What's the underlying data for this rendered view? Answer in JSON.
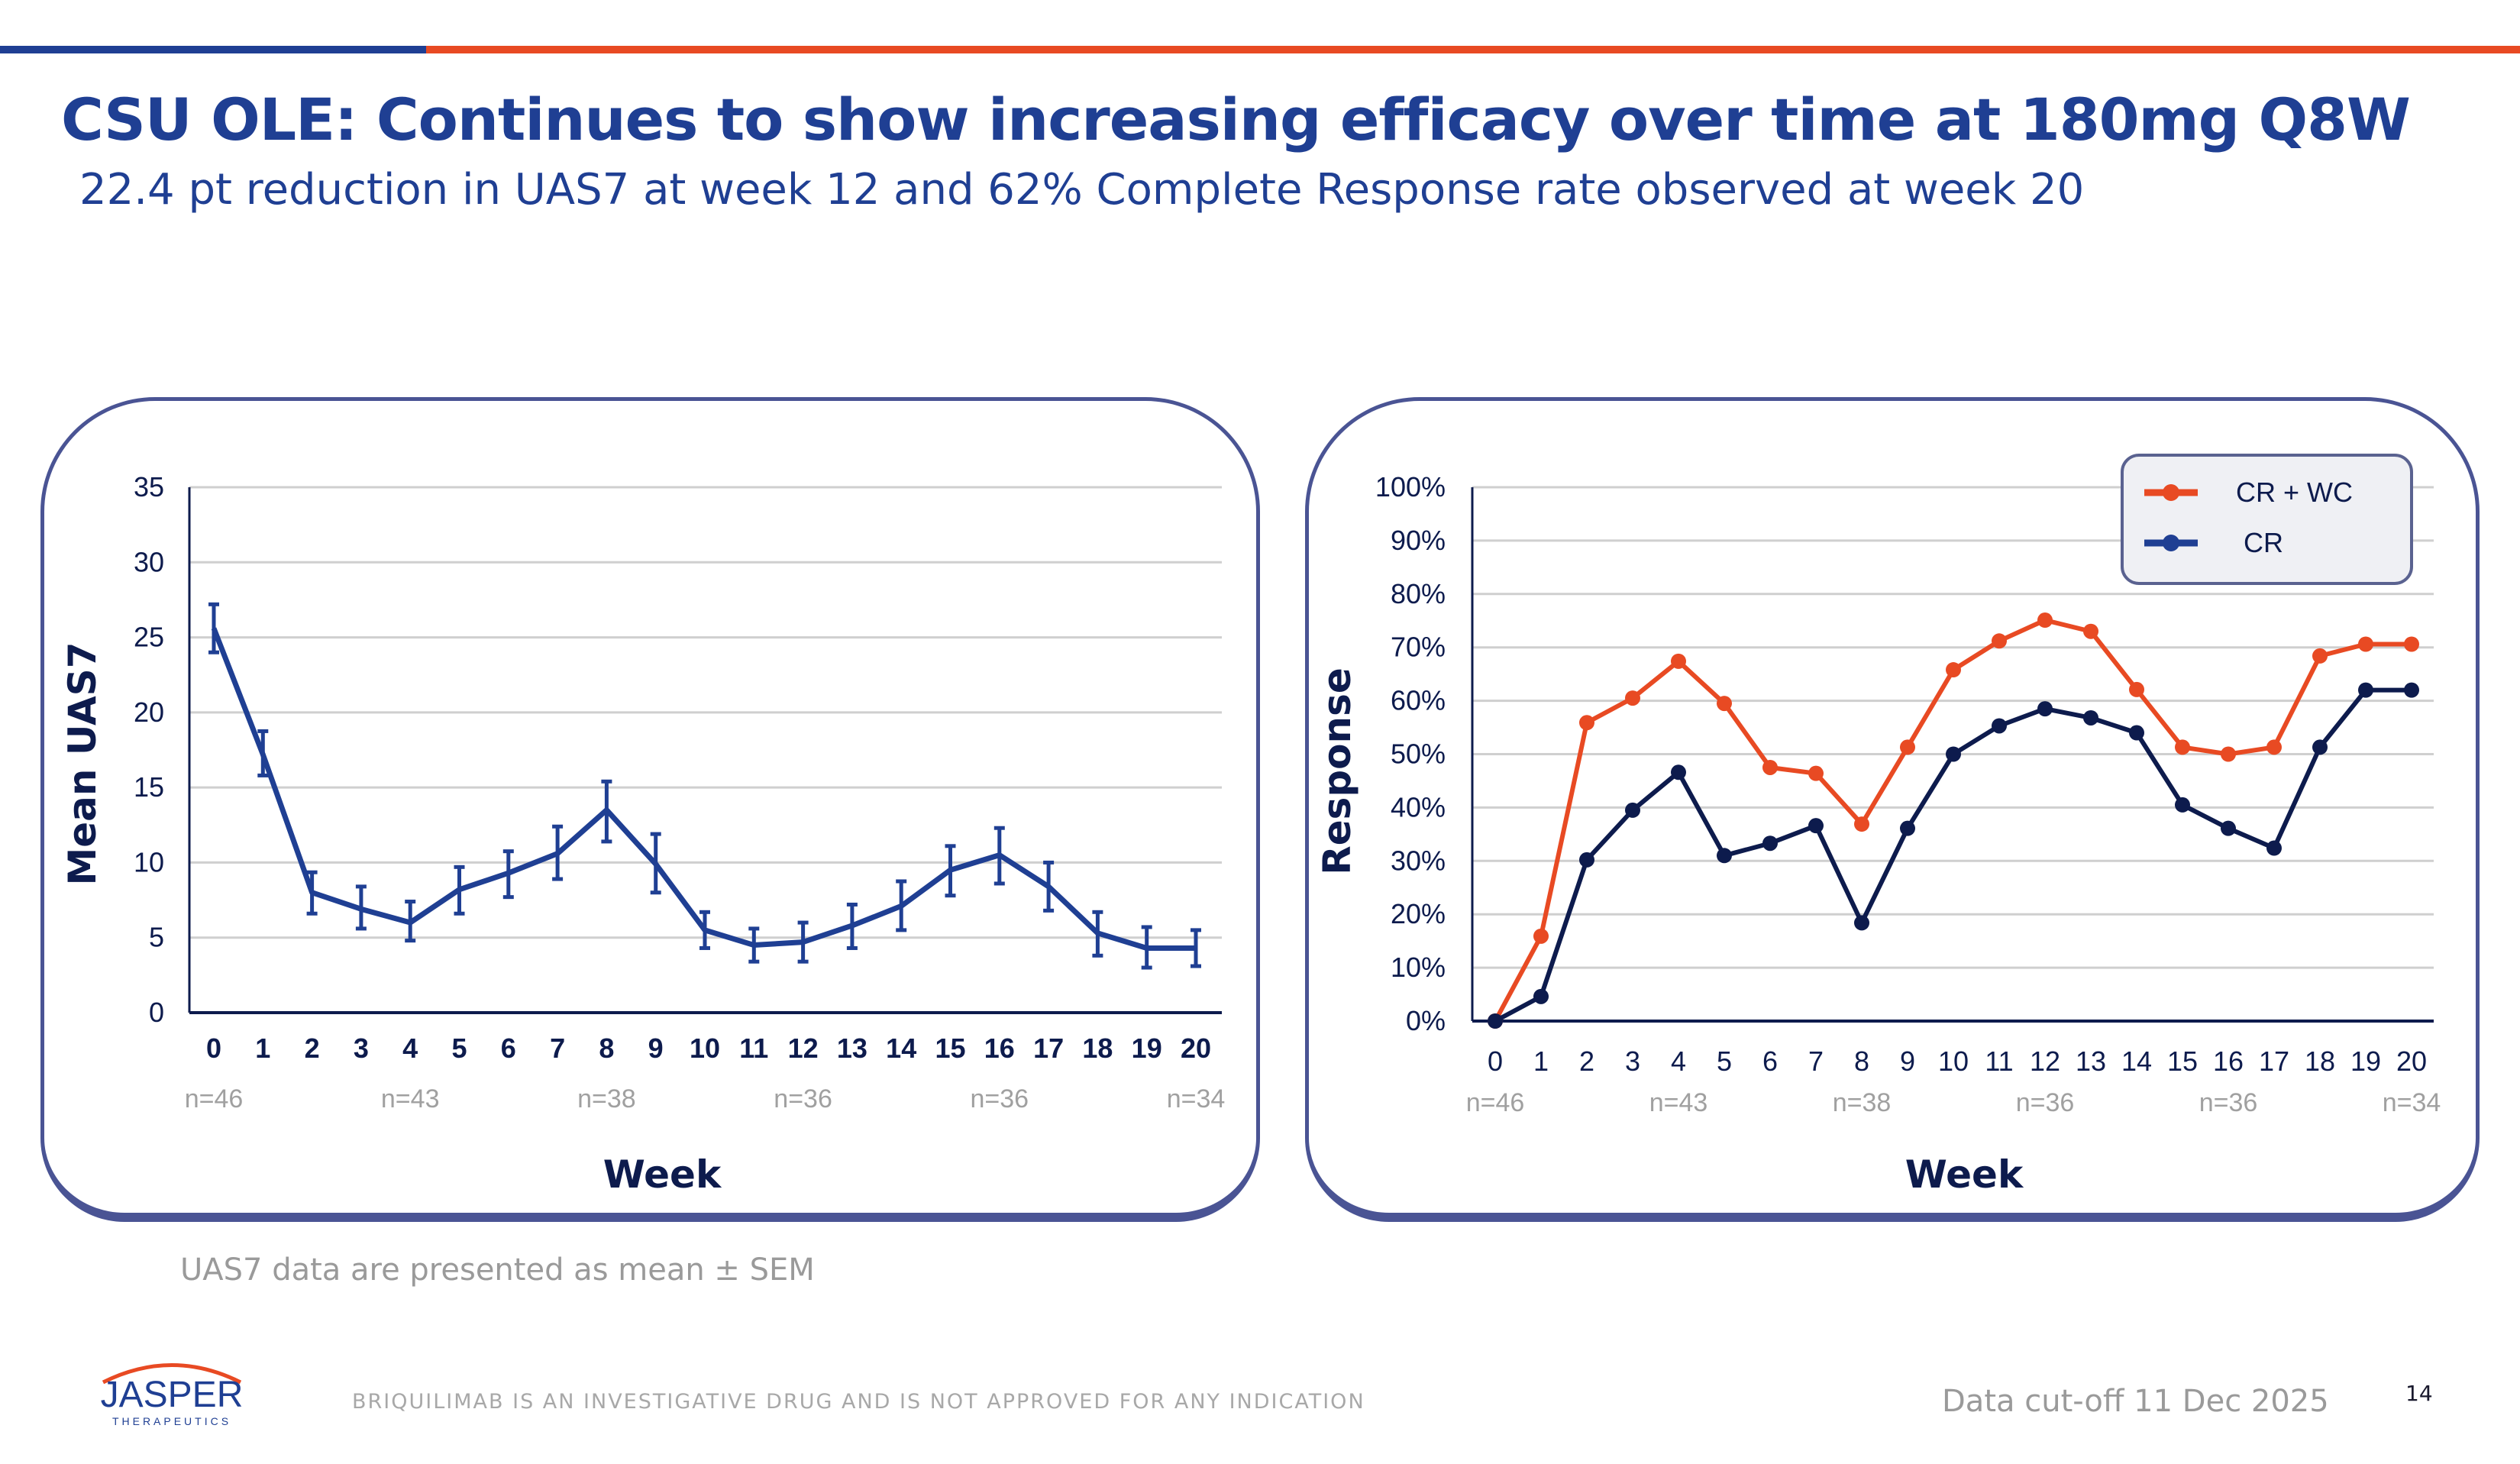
{
  "header": {
    "title": "CSU OLE: Continues to show increasing efficacy over time at 180mg Q8W",
    "subtitle": "22.4 pt reduction in UAS7 at week 12 and 62% Complete Response rate observed at week 20"
  },
  "colors": {
    "brand_blue": "#1f3f93",
    "brand_orange": "#e84a23",
    "cr_navy": "#0d1b4d",
    "panel_border": "#4a5494"
  },
  "chart_data": [
    {
      "type": "line",
      "ylabel": "Mean UAS7",
      "xlabel": "Week",
      "ylim": [
        0,
        35
      ],
      "yticks": [
        "0",
        "5",
        "10",
        "15",
        "20",
        "25",
        "30",
        "35"
      ],
      "grid": true,
      "error_bars": "SEM",
      "categories": [
        "0",
        "1",
        "2",
        "3",
        "4",
        "5",
        "6",
        "7",
        "8",
        "9",
        "10",
        "11",
        "12",
        "13",
        "14",
        "15",
        "16",
        "17",
        "18",
        "19",
        "20"
      ],
      "series": [
        {
          "values": [
            25.6,
            17.2,
            8.0,
            6.9,
            6.0,
            8.2,
            9.3,
            10.6,
            13.5,
            9.9,
            5.5,
            4.5,
            4.7,
            5.8,
            7.1,
            9.5,
            10.5,
            8.4,
            5.3,
            4.3,
            4.3
          ],
          "err_high": [
            27.2,
            18.75,
            9.35,
            8.4,
            7.4,
            9.7,
            10.75,
            12.4,
            15.4,
            11.9,
            6.7,
            5.6,
            6.0,
            7.2,
            8.75,
            11.1,
            12.3,
            10.0,
            6.7,
            5.7,
            5.5
          ],
          "err_low": [
            24.0,
            15.8,
            6.6,
            5.6,
            4.8,
            6.6,
            7.7,
            8.9,
            11.4,
            8.0,
            4.3,
            3.4,
            3.4,
            4.3,
            5.5,
            7.8,
            8.6,
            6.8,
            3.8,
            3.0,
            3.1
          ],
          "color": "#1f3f93"
        }
      ],
      "n_labels": [
        {
          "week": 0,
          "text": "n=46"
        },
        {
          "week": 4,
          "text": "n=43"
        },
        {
          "week": 8,
          "text": "n=38"
        },
        {
          "week": 12,
          "text": "n=36"
        },
        {
          "week": 16,
          "text": "n=36"
        },
        {
          "week": 20,
          "text": "n=34"
        }
      ]
    },
    {
      "type": "line",
      "ylabel": "Response",
      "xlabel": "Week",
      "ylim": [
        0,
        100
      ],
      "yticks": [
        "0%",
        "10%",
        "20%",
        "30%",
        "40%",
        "50%",
        "60%",
        "70%",
        "80%",
        "90%",
        "100%"
      ],
      "grid": true,
      "legend": "top-right",
      "categories": [
        "0",
        "1",
        "2",
        "3",
        "4",
        "5",
        "6",
        "7",
        "8",
        "9",
        "10",
        "11",
        "12",
        "13",
        "14",
        "15",
        "16",
        "17",
        "18",
        "19",
        "20"
      ],
      "series": [
        {
          "name": "CR + WC",
          "color": "#e84a23",
          "values": [
            0,
            15.9,
            55.9,
            60.5,
            67.4,
            59.5,
            47.5,
            46.4,
            36.9,
            51.3,
            65.8,
            71.2,
            75.1,
            73.0,
            62.1,
            51.3,
            50.0,
            51.3,
            68.4,
            70.6,
            70.6
          ]
        },
        {
          "name": "CR",
          "color": "#0d1b4d",
          "values": [
            0,
            4.6,
            30.2,
            39.5,
            46.6,
            31.0,
            33.3,
            36.6,
            18.4,
            36.1,
            50.0,
            55.3,
            58.5,
            56.8,
            54.0,
            40.5,
            36.1,
            32.4,
            51.3,
            62.0,
            62.0
          ]
        }
      ],
      "n_labels": [
        {
          "week": 0,
          "text": "n=46"
        },
        {
          "week": 4,
          "text": "n=43"
        },
        {
          "week": 8,
          "text": "n=38"
        },
        {
          "week": 12,
          "text": "n=36"
        },
        {
          "week": 16,
          "text": "n=36"
        },
        {
          "week": 20,
          "text": "n=34"
        }
      ]
    }
  ],
  "footnote": "UAS7 data are presented as mean ± SEM",
  "footer": {
    "logo_text": "JASPER",
    "logo_sub": "THERAPEUTICS",
    "disclaimer": "BRIQUILIMAB IS AN INVESTIGATIVE DRUG AND IS NOT APPROVED FOR ANY INDICATION",
    "cutoff": "Data cut-off 11 Dec 2025",
    "page": "14"
  }
}
